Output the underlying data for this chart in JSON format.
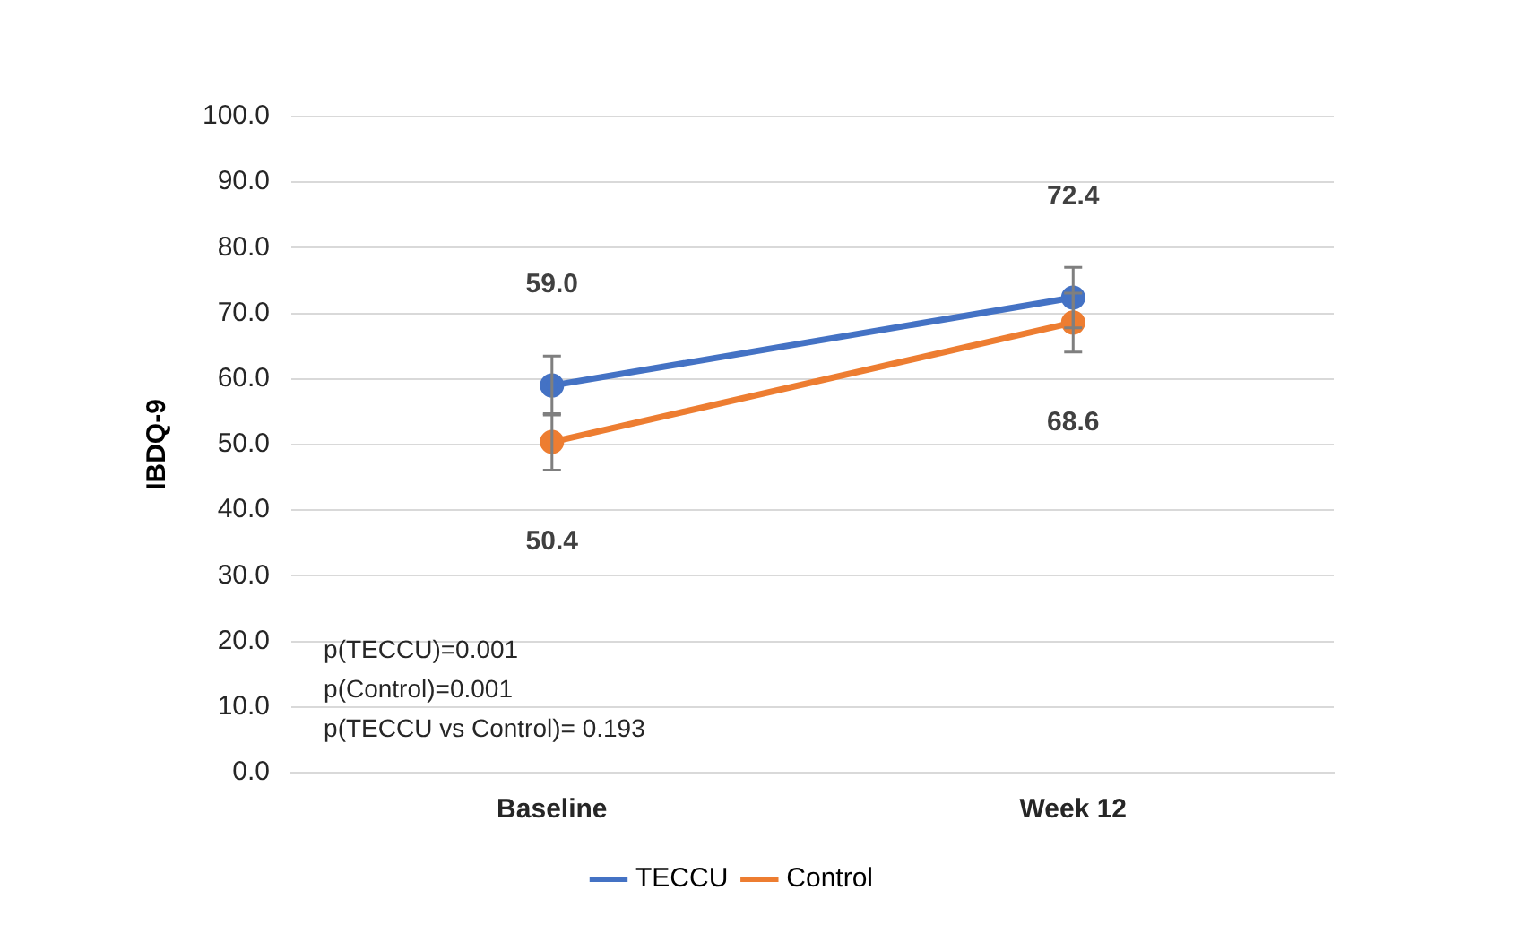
{
  "chart_data": {
    "type": "line",
    "ylabel": "IBDQ-9",
    "categories": [
      "Baseline",
      "Week 12"
    ],
    "series": [
      {
        "name": "TECCU",
        "color": "#4472c4",
        "values": [
          59.0,
          72.4
        ],
        "value_labels": [
          "59.0",
          "72.4"
        ],
        "errors": [
          4.5,
          4.6
        ]
      },
      {
        "name": "Control",
        "color": "#ed7d31",
        "values": [
          50.4,
          68.6
        ],
        "value_labels": [
          "50.4",
          "68.6"
        ],
        "errors": [
          4.3,
          4.5
        ]
      }
    ],
    "ylim": [
      0,
      100
    ],
    "yticks": [
      {
        "value": 0,
        "label": "0.0"
      },
      {
        "value": 10,
        "label": "10.0"
      },
      {
        "value": 20,
        "label": "20.0"
      },
      {
        "value": 30,
        "label": "30.0"
      },
      {
        "value": 40,
        "label": "40.0"
      },
      {
        "value": 50,
        "label": "50.0"
      },
      {
        "value": 60,
        "label": "60.0"
      },
      {
        "value": 70,
        "label": "70.0"
      },
      {
        "value": 80,
        "label": "80.0"
      },
      {
        "value": 90,
        "label": "90.0"
      },
      {
        "value": 100,
        "label": "100.0"
      }
    ],
    "grid": "y",
    "legend": "bottom",
    "marker": "circle",
    "line_style": "solid",
    "annotations": [
      "p(TECCU)=0.001",
      "p(Control)=0.001",
      "p(TECCU vs Control)= 0.193"
    ]
  }
}
